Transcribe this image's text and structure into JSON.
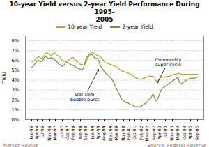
{
  "chart_data": {
    "type": "line",
    "title": "10-year Yield versus 2-year Yield Performance During 1995-\n2005",
    "ylabel": "Yield",
    "categories": [
      "Jan-96",
      null,
      null,
      null,
      "Apr-96",
      null,
      null,
      null,
      "Jul-96",
      null,
      null,
      null,
      null,
      "Nov-96",
      null,
      null,
      null,
      "Mar-97",
      null,
      null,
      null,
      null,
      "Jul-97",
      null,
      null,
      null,
      "Oct-97",
      null,
      null,
      null,
      "Feb-98",
      null,
      null,
      null,
      null,
      "Jun-98",
      null,
      null,
      null,
      "Sep-98",
      null,
      null,
      null,
      null,
      "Jan-99",
      null,
      null,
      null,
      "Apr-99",
      null,
      null,
      null,
      "Aug-99",
      null,
      null,
      null,
      null,
      "Dec-99",
      null,
      null,
      null,
      "Mar-00",
      null,
      null,
      null,
      null,
      "Nov-00",
      null,
      null,
      null,
      "Feb-01",
      null,
      null,
      null,
      "Oct-01",
      null,
      null,
      null,
      null,
      "Feb-02",
      null,
      null,
      null,
      "May-02",
      null,
      null,
      null,
      null,
      "Sep-02",
      null,
      null,
      null,
      "Apr-03",
      null,
      null,
      null,
      "Jul-03",
      null,
      null,
      null,
      null,
      "Nov-03",
      null,
      null,
      null,
      "Mar-04",
      null,
      null,
      null,
      null,
      "Oct-04",
      null,
      null,
      null,
      "Apr-05",
      null,
      null,
      null,
      null,
      "Sep-05"
    ],
    "series": [
      {
        "name": "10-year Yield",
        "color": "#c8a020",
        "values": [
          0.058,
          0.059,
          0.06,
          0.062,
          0.063,
          0.064,
          0.063,
          0.062,
          0.063,
          0.065,
          0.067,
          0.068,
          0.067,
          0.066,
          0.065,
          0.066,
          0.068,
          0.067,
          0.065,
          0.065,
          0.064,
          0.062,
          0.06,
          0.059,
          0.059,
          0.059,
          0.06,
          0.061,
          0.062,
          0.063,
          0.063,
          0.061,
          0.06,
          0.058,
          0.057,
          0.056,
          0.056,
          0.055,
          0.056,
          0.058,
          0.062,
          0.064,
          0.066,
          0.068,
          0.068,
          0.067,
          0.066,
          0.065,
          0.065,
          0.064,
          0.063,
          0.061,
          0.059,
          0.058,
          0.057,
          0.057,
          0.056,
          0.056,
          0.055,
          0.055,
          0.054,
          0.053,
          0.052,
          0.051,
          0.05,
          0.049,
          0.049,
          0.048,
          0.048,
          0.047,
          0.047,
          0.046,
          0.045,
          0.044,
          0.043,
          0.042,
          0.042,
          0.041,
          0.041,
          0.041,
          0.042,
          0.042,
          0.043,
          0.043,
          0.044,
          0.044,
          0.044,
          0.044,
          0.043,
          0.04,
          0.038,
          0.04,
          0.042,
          0.043,
          0.043,
          0.043,
          0.043,
          0.044,
          0.044,
          0.044,
          0.045,
          0.045,
          0.046,
          0.046,
          0.046,
          0.047,
          0.047,
          0.046,
          0.046,
          0.046,
          0.046,
          0.046,
          0.046,
          0.046,
          0.046,
          0.046,
          0.046,
          0.046,
          0.046,
          0.046
        ]
      },
      {
        "name": "2-year Yield",
        "color": "#5a9e2f",
        "values": [
          0.053,
          0.054,
          0.056,
          0.058,
          0.06,
          0.06,
          0.059,
          0.059,
          0.06,
          0.063,
          0.064,
          0.063,
          0.062,
          0.062,
          0.063,
          0.062,
          0.062,
          0.06,
          0.059,
          0.057,
          0.056,
          0.055,
          0.054,
          0.055,
          0.057,
          0.058,
          0.058,
          0.057,
          0.056,
          0.055,
          0.055,
          0.054,
          0.053,
          0.052,
          0.052,
          0.051,
          0.05,
          0.052,
          0.056,
          0.062,
          0.064,
          0.066,
          0.067,
          0.066,
          0.065,
          0.063,
          0.062,
          0.062,
          0.06,
          0.056,
          0.053,
          0.051,
          0.049,
          0.047,
          0.046,
          0.045,
          0.043,
          0.042,
          0.04,
          0.037,
          0.034,
          0.031,
          0.028,
          0.025,
          0.022,
          0.02,
          0.019,
          0.018,
          0.017,
          0.017,
          0.016,
          0.015,
          0.015,
          0.014,
          0.013,
          0.013,
          0.013,
          0.013,
          0.013,
          0.014,
          0.015,
          0.016,
          0.017,
          0.018,
          0.02,
          0.021,
          0.023,
          0.026,
          0.023,
          0.019,
          0.02,
          0.023,
          0.027,
          0.03,
          0.032,
          0.033,
          0.034,
          0.035,
          0.036,
          0.037,
          0.038,
          0.039,
          0.04,
          0.041,
          0.042,
          0.043,
          0.038,
          0.036,
          0.037,
          0.038,
          0.039,
          0.04,
          0.041,
          0.041,
          0.042,
          0.042,
          0.042,
          0.042,
          0.043,
          0.043
        ]
      }
    ],
    "ylim": [
      0.0,
      0.085
    ],
    "yticks": [
      {
        "value": 0.0,
        "label": "0%"
      },
      {
        "value": 0.01,
        "label": "1%"
      },
      {
        "value": 0.02,
        "label": "2%"
      },
      {
        "value": 0.03,
        "label": "3%"
      },
      {
        "value": 0.04,
        "label": "4%"
      },
      {
        "value": 0.05,
        "label": "5%"
      },
      {
        "value": 0.06,
        "label": "6%"
      },
      {
        "value": 0.07,
        "label": "7%"
      },
      {
        "value": 0.08,
        "label": "8%"
      }
    ],
    "grid": true,
    "legend": "top",
    "annotations": [
      {
        "text": "Dot-com\nbubble burst",
        "x": 38,
        "y": 0.023,
        "arrow_x": 48,
        "arrow_y": 0.051
      },
      {
        "text": "Commodity\nsuper cycle",
        "x": 98,
        "y": 0.058,
        "arrow_x": 90,
        "arrow_y": 0.037
      }
    ],
    "watermark": "Market Realist",
    "caption": "Source: Federal Reserve"
  }
}
